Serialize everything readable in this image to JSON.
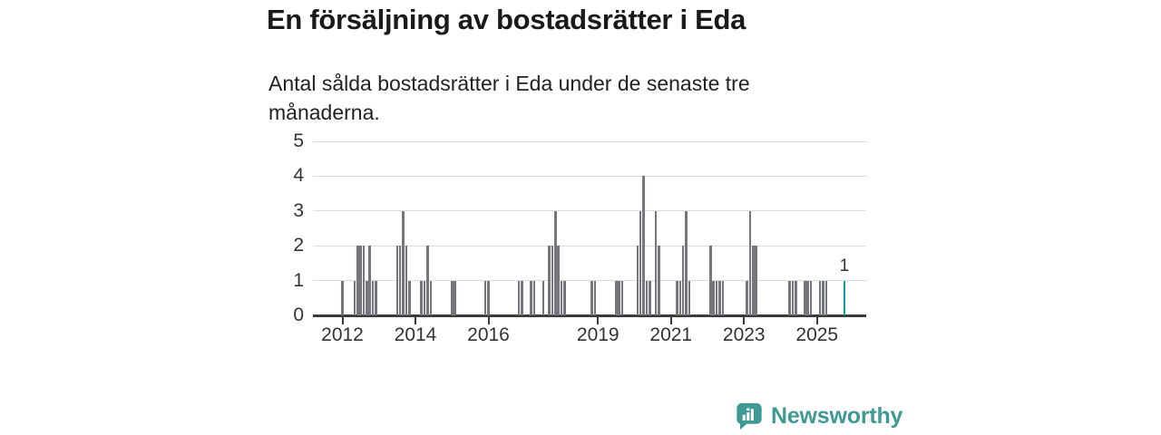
{
  "title": "En försäljning av bostadsrätter i Eda",
  "subtitle": "Antal sålda bostadsrätter i Eda under de senaste tre månaderna.",
  "branding": {
    "logo_text": "Newsworthy"
  },
  "colors": {
    "bar": "#76767e",
    "highlight_bar": "#0ba29d",
    "gridline": "#dcdcdc",
    "axis": "#3b3b3b",
    "tick_text": "#333333",
    "title_text": "#1a1a18",
    "logo": "#3f9a96"
  },
  "chart_data": {
    "type": "bar",
    "title": "En försäljning av bostadsrätter i Eda",
    "subtitle": "Antal sålda bostadsrätter i Eda under de senaste tre månaderna.",
    "xlabel": "",
    "ylabel": "",
    "ylim": [
      0,
      5
    ],
    "yticks": [
      0,
      1,
      2,
      3,
      4,
      5
    ],
    "xticks": [
      2012,
      2014,
      2016,
      2019,
      2021,
      2023,
      2025
    ],
    "grid": "horizontal",
    "x_unit": "month",
    "points": [
      [
        "2012-01",
        1
      ],
      [
        "2012-05",
        1
      ],
      [
        "2012-06",
        2
      ],
      [
        "2012-07",
        2
      ],
      [
        "2012-08",
        2
      ],
      [
        "2012-09",
        1
      ],
      [
        "2012-10",
        2
      ],
      [
        "2012-11",
        1
      ],
      [
        "2012-12",
        1
      ],
      [
        "2013-07",
        2
      ],
      [
        "2013-08",
        2
      ],
      [
        "2013-09",
        3
      ],
      [
        "2013-10",
        2
      ],
      [
        "2013-11",
        1
      ],
      [
        "2014-03",
        1
      ],
      [
        "2014-04",
        1
      ],
      [
        "2014-05",
        2
      ],
      [
        "2014-06",
        1
      ],
      [
        "2015-01",
        1
      ],
      [
        "2015-02",
        1
      ],
      [
        "2015-12",
        1
      ],
      [
        "2016-01",
        1
      ],
      [
        "2016-11",
        1
      ],
      [
        "2016-12",
        1
      ],
      [
        "2017-03",
        1
      ],
      [
        "2017-04",
        1
      ],
      [
        "2017-07",
        1
      ],
      [
        "2017-09",
        2
      ],
      [
        "2017-10",
        2
      ],
      [
        "2017-11",
        3
      ],
      [
        "2017-12",
        2
      ],
      [
        "2018-01",
        1
      ],
      [
        "2018-02",
        1
      ],
      [
        "2018-11",
        1
      ],
      [
        "2018-12",
        1
      ],
      [
        "2019-07",
        1
      ],
      [
        "2019-08",
        1
      ],
      [
        "2019-09",
        1
      ],
      [
        "2020-02",
        2
      ],
      [
        "2020-03",
        3
      ],
      [
        "2020-04",
        4
      ],
      [
        "2020-05",
        1
      ],
      [
        "2020-06",
        1
      ],
      [
        "2020-08",
        3
      ],
      [
        "2020-09",
        2
      ],
      [
        "2021-03",
        1
      ],
      [
        "2021-04",
        1
      ],
      [
        "2021-05",
        2
      ],
      [
        "2021-06",
        3
      ],
      [
        "2021-07",
        1
      ],
      [
        "2022-02",
        2
      ],
      [
        "2022-03",
        1
      ],
      [
        "2022-04",
        1
      ],
      [
        "2022-05",
        1
      ],
      [
        "2022-06",
        1
      ],
      [
        "2023-02",
        1
      ],
      [
        "2023-03",
        3
      ],
      [
        "2023-04",
        2
      ],
      [
        "2023-05",
        2
      ],
      [
        "2024-04",
        1
      ],
      [
        "2024-05",
        1
      ],
      [
        "2024-06",
        1
      ],
      [
        "2024-09",
        1
      ],
      [
        "2024-10",
        1
      ],
      [
        "2024-11",
        1
      ],
      [
        "2025-02",
        1
      ],
      [
        "2025-03",
        1
      ],
      [
        "2025-04",
        1
      ],
      [
        "2025-10",
        1
      ]
    ],
    "highlight": {
      "month": "2025-10",
      "value": 1,
      "label": "1"
    }
  }
}
